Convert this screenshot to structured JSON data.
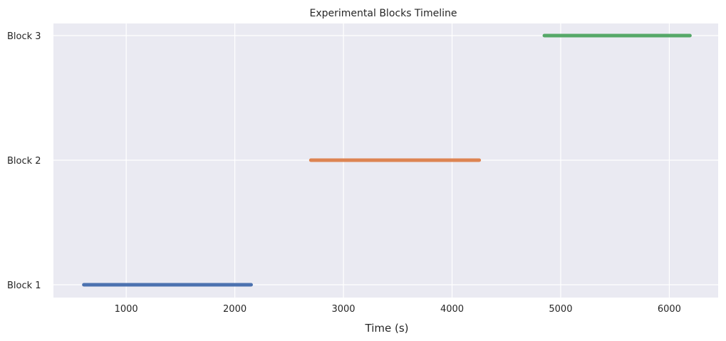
{
  "chart_data": {
    "type": "timeline",
    "title": "Experimental Blocks Timeline",
    "xlabel": "Time (s)",
    "ylabel": "",
    "xlim": [
      330,
      6450
    ],
    "x_ticks": [
      1000,
      2000,
      3000,
      4000,
      5000,
      6000
    ],
    "grid": true,
    "legend": "none",
    "categories": [
      "Block 1",
      "Block 2",
      "Block 3"
    ],
    "series": [
      {
        "label": "Block 1",
        "start": 610,
        "end": 2150,
        "color": "#4c72b0"
      },
      {
        "label": "Block 2",
        "start": 2700,
        "end": 4250,
        "color": "#dd8452"
      },
      {
        "label": "Block 3",
        "start": 4850,
        "end": 6190,
        "color": "#55a868"
      }
    ],
    "colors": {
      "plot_background": "#eaeaf2",
      "grid": "#ffffff",
      "text": "#262626"
    }
  }
}
